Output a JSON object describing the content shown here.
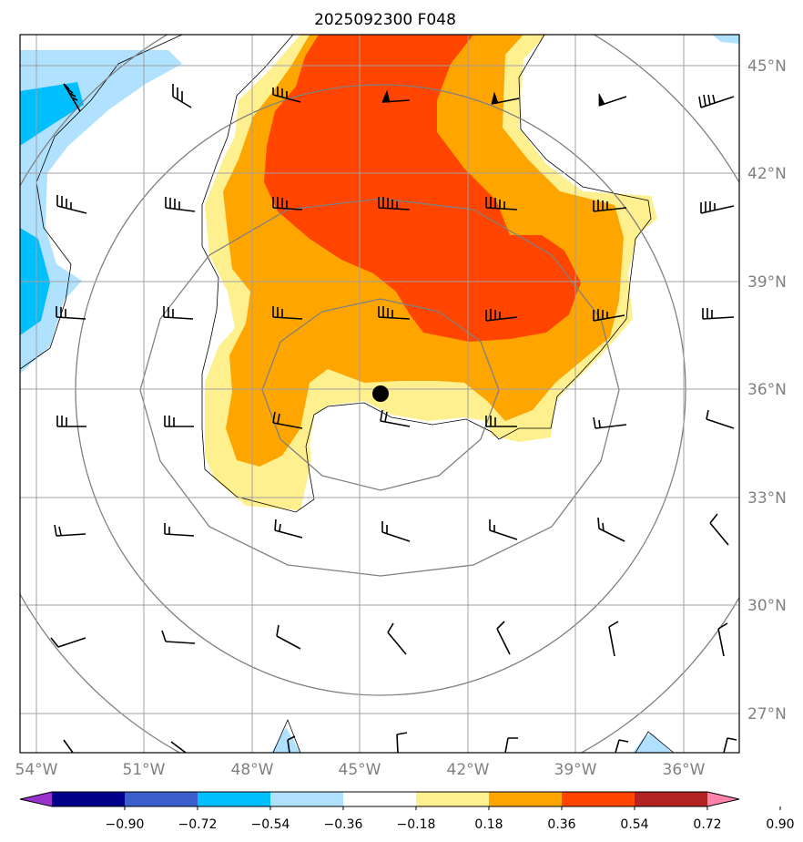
{
  "title": "2025092300 F048",
  "lat_labels": [
    "45°N",
    "42°N",
    "39°N",
    "36°N",
    "33°N",
    "30°N",
    "27°N"
  ],
  "lon_labels": [
    "54°W",
    "51°W",
    "48°W",
    "45°W",
    "42°W",
    "39°W",
    "36°W"
  ],
  "colorbar": {
    "ticks": [
      "−0.90",
      "−0.72",
      "−0.54",
      "−0.36",
      "−0.18",
      "0.18",
      "0.36",
      "0.54",
      "0.72",
      "0.90"
    ],
    "colors": [
      "#9932cc",
      "#00008b",
      "#3a5fcd",
      "#00bfff",
      "#b0e2ff",
      "#ffffff",
      "#fff08f",
      "#ffa500",
      "#ff4500",
      "#b22222",
      "#ff83aa"
    ]
  },
  "fill_colors": {
    "light_yellow": "#fff08f",
    "orange": "#ffa500",
    "red_orange": "#ff4500",
    "light_blue": "#b0e2ff",
    "deep_sky_blue": "#00bfff"
  },
  "center_marker": "storm-center"
}
